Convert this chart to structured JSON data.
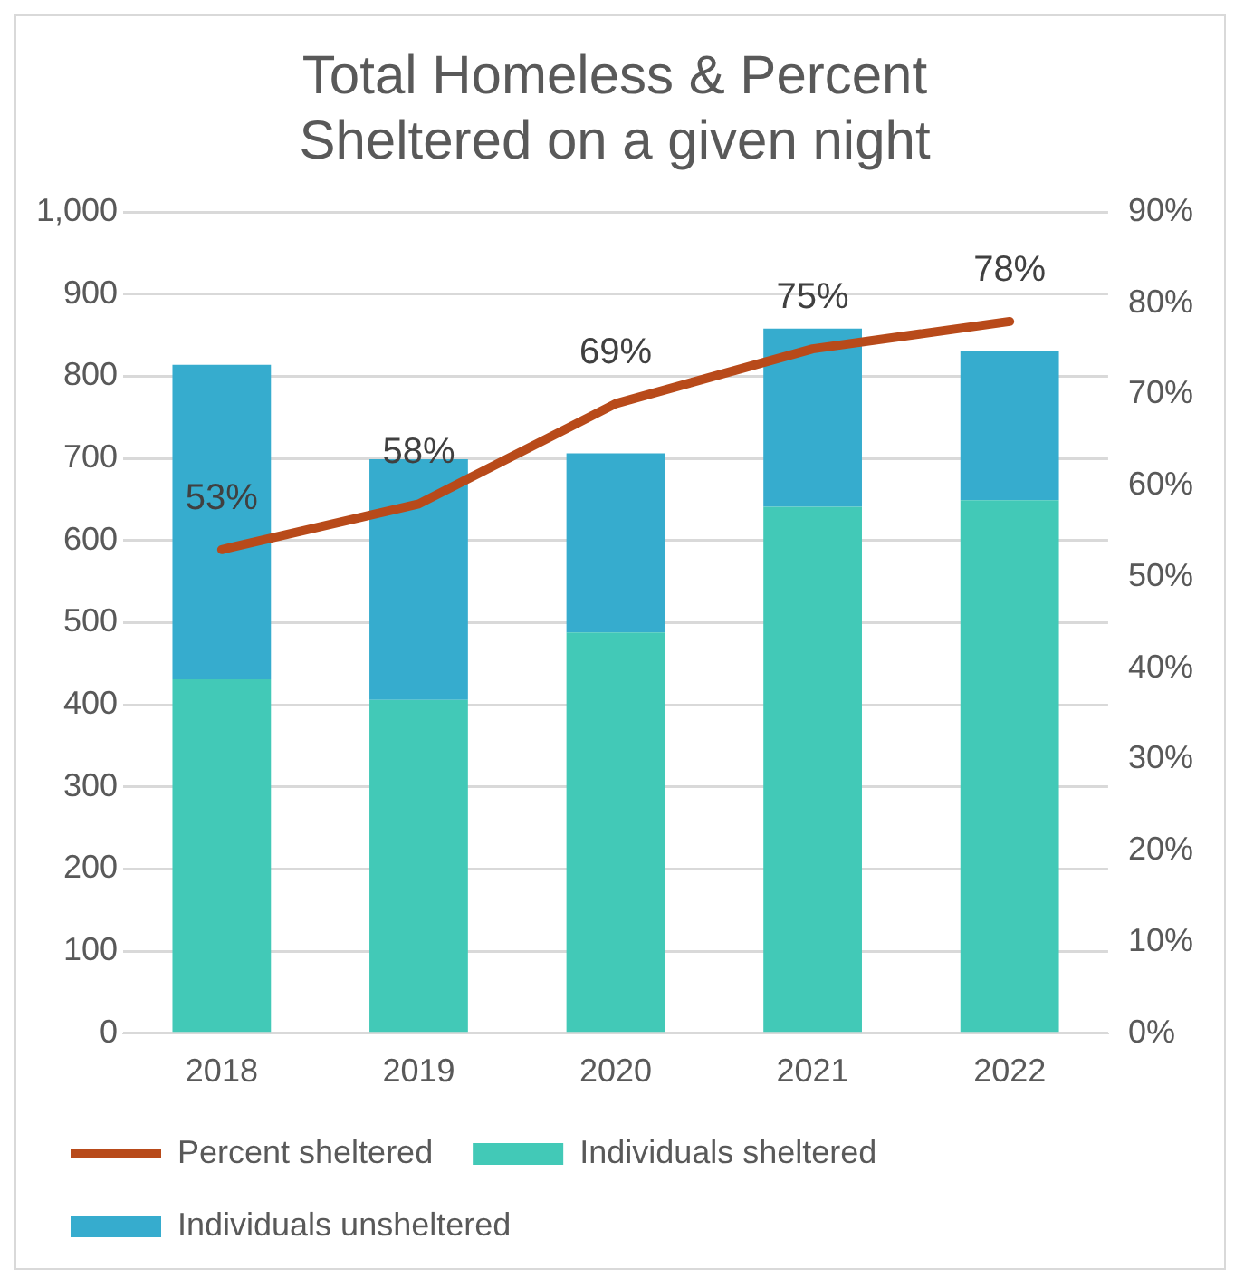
{
  "chart_data": {
    "type": "bar",
    "title": "Total Homeless & Percent Sheltered on a given night",
    "categories": [
      "2018",
      "2019",
      "2020",
      "2021",
      "2022"
    ],
    "stacked": true,
    "series": [
      {
        "name": "Individuals sheltered",
        "color": "#42c9b7",
        "values": [
          431,
          406,
          488,
          641,
          649
        ]
      },
      {
        "name": "Individuals unsheltered",
        "color": "#36acce",
        "values": [
          383,
          293,
          218,
          217,
          182
        ]
      },
      {
        "name": "Percent sheltered",
        "type": "line",
        "axis": "y2",
        "color": "#b84a1a",
        "values": [
          53,
          58,
          69,
          75,
          78
        ],
        "value_labels": [
          "53%",
          "58%",
          "69%",
          "75%",
          "78%"
        ],
        "marker": "none"
      }
    ],
    "ylim": [
      0,
      1000
    ],
    "yticks": [
      0,
      100,
      200,
      300,
      400,
      500,
      600,
      700,
      800,
      900,
      {
        "value": 1000,
        "label": "1,000"
      }
    ],
    "y2lim": [
      0,
      90
    ],
    "y2ticks": [
      {
        "value": 0,
        "label": "0%"
      },
      {
        "value": 10,
        "label": "10%"
      },
      {
        "value": 20,
        "label": "20%"
      },
      {
        "value": 30,
        "label": "30%"
      },
      {
        "value": 40,
        "label": "40%"
      },
      {
        "value": 50,
        "label": "50%"
      },
      {
        "value": 60,
        "label": "60%"
      },
      {
        "value": 70,
        "label": "70%"
      },
      {
        "value": 80,
        "label": "80%"
      },
      {
        "value": 90,
        "label": "90%"
      }
    ],
    "grid": "y",
    "legend": "bottom"
  }
}
